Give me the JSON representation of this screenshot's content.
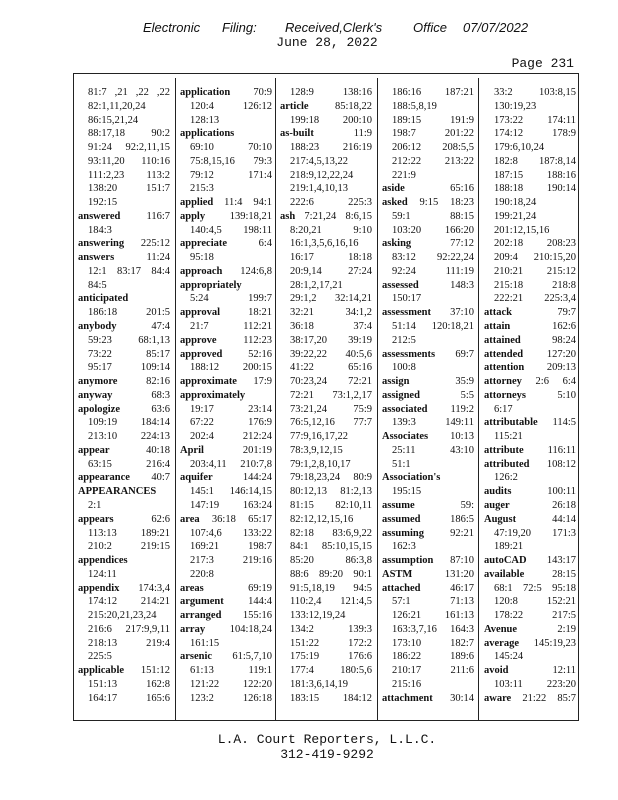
{
  "header": {
    "stamp": [
      "Electronic",
      "Filing:",
      "Received,Clerk's",
      "Office",
      "07/07/2022"
    ],
    "date": "June 28, 2022",
    "page": "Page 231"
  },
  "columns": [
    [
      "81:7 ,21 ,22 ,22",
      "82:1,11,20,24",
      "86:15,21,24",
      "88:17,18 90:2",
      "91:24 92:2,11,15",
      "93:11,20 110:16",
      "111:2,23 113:2",
      "138:20 151:7",
      "192:15",
      {
        "term": "answered",
        "refs": "116:7"
      },
      "184:3",
      {
        "term": "answering",
        "refs": "225:12"
      },
      {
        "term": "answers",
        "refs": "11:24"
      },
      "12:1 83:17 84:4",
      "84:5",
      {
        "term": "anticipated"
      },
      "186:18 201:5",
      {
        "term": "anybody",
        "refs": "47:4"
      },
      "59:23 68:1,13",
      "73:22 85:17",
      "95:17 109:14",
      {
        "term": "anymore",
        "refs": "82:16"
      },
      {
        "term": "anyway",
        "refs": "68:3"
      },
      {
        "term": "apologize",
        "refs": "63:6"
      },
      "109:19 184:14",
      "213:10 224:13",
      {
        "term": "appear",
        "refs": "40:18"
      },
      "63:15 216:4",
      {
        "term": "appearance",
        "refs": "40:7"
      },
      {
        "term": "APPEARANCES"
      },
      "2:1",
      {
        "term": "appears",
        "refs": "62:6"
      },
      "113:13 189:21",
      "210:2 219:15",
      {
        "term": "appendices"
      },
      "124:11",
      {
        "term": "appendix",
        "refs": "174:3,4"
      },
      "174:12 214:21",
      "215:20,21,23,24",
      "216:6 217:9,9,11",
      "218:13 219:4",
      "225:5",
      {
        "term": "applicable",
        "refs": "151:12"
      },
      "151:13 162:8",
      "164:17 165:6"
    ],
    [
      {
        "term": "application",
        "refs": "70:9"
      },
      "120:4 126:12",
      "128:13",
      {
        "term": "applications"
      },
      "69:10 70:10",
      "75:8,15,16 79:3",
      "79:12 171:4",
      "215:3",
      {
        "term": "applied",
        "refs": "11:4 94:1"
      },
      {
        "term": "apply",
        "refs": "139:18,21"
      },
      "140:4,5 198:11",
      {
        "term": "appreciate",
        "refs": "6:4"
      },
      "95:18",
      {
        "term": "approach",
        "refs": "124:6,8"
      },
      {
        "term": "appropriately"
      },
      "5:24 199:7",
      {
        "term": "approval",
        "refs": "18:21"
      },
      "21:7 112:21",
      {
        "term": "approve",
        "refs": "112:23"
      },
      {
        "term": "approved",
        "refs": "52:16"
      },
      "188:12 200:15",
      {
        "term": "approximate",
        "refs": "17:9"
      },
      {
        "term": "approximately"
      },
      "19:17 23:14",
      "67:22 176:9",
      "202:4 212:24",
      {
        "term": "April",
        "refs": "201:19"
      },
      "203:4,11 210:7,8",
      {
        "term": "aquifer",
        "refs": "144:24"
      },
      "145:1 146:14,15",
      "147:19 163:24",
      {
        "term": "area",
        "refs": "36:18 65:17"
      },
      "107:4,6 133:22",
      "169:21 198:7",
      "217:3 219:16",
      "220:8",
      {
        "term": "areas",
        "refs": "69:19"
      },
      {
        "term": "argument",
        "refs": "144:4"
      },
      {
        "term": "arranged",
        "refs": "155:16"
      },
      {
        "term": "array",
        "refs": "104:18,24"
      },
      "161:15",
      {
        "term": "arsenic",
        "refs": "61:5,7,10"
      },
      "61:13 119:1",
      "121:22 122:20",
      "123:2 126:18"
    ],
    [
      "128:9 138:16",
      {
        "term": "article",
        "refs": "85:18,22"
      },
      "199:18 200:10",
      {
        "term": "as-built",
        "refs": "11:9"
      },
      "188:23 216:19",
      "217:4,5,13,22",
      "218:9,12,22,24",
      "219:1,4,10,13",
      "222:6 225:3",
      {
        "term": "ash",
        "refs": "7:21,24 8:6,15"
      },
      "8:20,21 9:10",
      "16:1,3,5,6,16,16",
      "16:17 18:18",
      "20:9,14 27:24",
      "28:1,2,17,21",
      "29:1,2 32:14,21",
      "32:21 34:1,2",
      "36:18 37:4",
      "38:17,20 39:19",
      "39:22,22 40:5,6",
      "41:22 65:16",
      "70:23,24 72:21",
      "72:21 73:1,2,17",
      "73:21,24 75:9",
      "76:5,12,16 77:7",
      "77:9,16,17,22",
      "78:3,9,12,15",
      "79:1,2,8,10,17",
      "79:18,23,24 80:9",
      "80:12,13 81:2,13",
      "81:15 82:10,11",
      "82:12,12,15,16",
      "82:18 83:6,9,22",
      "84:1 85:10,15,15",
      "85:20 86:3,8",
      "88:6 89:20 90:1",
      "91:5,18,19 94:5",
      "110:2,4 121:4,5",
      "133:12,19,24",
      "134:2 139:3",
      "151:22 172:2",
      "175:19 176:6",
      "177:4 180:5,6",
      "181:3,6,14,19",
      "183:15 184:12"
    ],
    [
      "186:16 187:21",
      "188:5,8,19",
      "189:15 191:9",
      "198:7 201:22",
      "206:12 208:5,5",
      "212:22 213:22",
      "221:9",
      {
        "term": "aside",
        "refs": "65:16"
      },
      {
        "term": "asked",
        "refs": "9:15 18:23"
      },
      "59:1 88:15",
      "103:20 166:20",
      {
        "term": "asking",
        "refs": "77:12"
      },
      "83:12 92:22,24",
      "92:24 111:19",
      {
        "term": "assessed",
        "refs": "148:3"
      },
      "150:17",
      {
        "term": "assessment",
        "refs": "37:10"
      },
      "51:14 120:18,21",
      "212:5",
      {
        "term": "assessments",
        "refs": "69:7"
      },
      "100:8",
      {
        "term": "assign",
        "refs": "35:9"
      },
      {
        "term": "assigned",
        "refs": "5:5"
      },
      {
        "term": "associated",
        "refs": "119:2"
      },
      "139:3 149:11",
      {
        "term": "Associates",
        "refs": "10:13"
      },
      "25:11 43:10",
      "51:1",
      {
        "term": "Association's"
      },
      "195:15",
      {
        "term": "assume",
        "refs": "59:"
      },
      {
        "term": "assumed",
        "refs": "186:5"
      },
      {
        "term": "assuming",
        "refs": "92:21"
      },
      "162:3",
      {
        "term": "assumption",
        "refs": "87:10"
      },
      {
        "term": "ASTM",
        "refs": "131:20"
      },
      {
        "term": "attached",
        "refs": "46:17"
      },
      "57:1 71:13",
      "126:21 161:13",
      "163:3,7,16 164:3",
      "173:10 182:7",
      "186:22 189:6",
      "210:17 211:6",
      "215:16",
      {
        "term": "attachment",
        "refs": "30:14"
      }
    ],
    [
      "33:2 103:8,15",
      "130:19,23",
      "173:22 174:11",
      "174:12 178:9",
      "179:6,10,24",
      "182:8 187:8,14",
      "187:15 188:16",
      "188:18 190:14",
      "190:18,24",
      "199:21,24",
      "201:12,15,16",
      "202:18 208:23",
      "209:4 210:15,20",
      "210:21 215:12",
      "215:18 218:8",
      "222:21 225:3,4",
      {
        "term": "attack",
        "refs": "79:7"
      },
      {
        "term": "attain",
        "refs": "162:6"
      },
      {
        "term": "attained",
        "refs": "98:24"
      },
      {
        "term": "attended",
        "refs": "127:20"
      },
      {
        "term": "attention",
        "refs": "209:13"
      },
      {
        "term": "attorney",
        "refs": "2:6 6:4"
      },
      {
        "term": "attorneys",
        "refs": "5:10"
      },
      "6:17",
      {
        "term": "attributable",
        "refs": "114:5"
      },
      "115:21",
      {
        "term": "attribute",
        "refs": "116:11"
      },
      {
        "term": "attributed",
        "refs": "108:12"
      },
      "126:2",
      {
        "term": "audits",
        "refs": "100:11"
      },
      {
        "term": "auger",
        "refs": "26:18"
      },
      {
        "term": "August",
        "refs": "44:14"
      },
      "47:19,20 171:3",
      "189:21",
      {
        "term": "autoCAD",
        "refs": "143:17"
      },
      {
        "term": "available",
        "refs": "28:15"
      },
      "68:1 72:5 95:18",
      "120:8 152:21",
      "178:22 217:5",
      {
        "term": "Avenue",
        "refs": "2:19"
      },
      {
        "term": "average",
        "refs": "145:19,23"
      },
      "145:24",
      {
        "term": "avoid",
        "refs": "12:11"
      },
      "103:11 223:20",
      {
        "term": "aware",
        "refs": "21:22 85:7"
      }
    ]
  ],
  "footer": {
    "firm": "L.A. Court Reporters, L.L.C.",
    "phone": "312-419-9292"
  }
}
